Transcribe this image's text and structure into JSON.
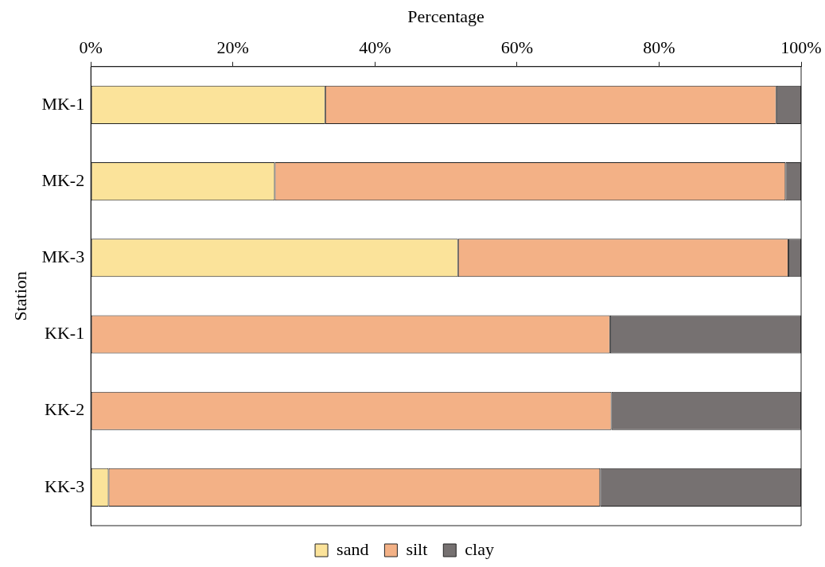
{
  "chart_data": {
    "type": "bar",
    "orientation": "horizontal",
    "stacked": true,
    "xlabel": "Percentage",
    "ylabel": "Station",
    "categories": [
      "MK-1",
      "MK-2",
      "MK-3",
      "KK-1",
      "KK-2",
      "KK-3"
    ],
    "series": [
      {
        "name": "sand",
        "color": "#fbe39a",
        "values": [
          33,
          25.9,
          51.7,
          0,
          0,
          2.5
        ]
      },
      {
        "name": "silt",
        "color": "#f3b186",
        "values": [
          63.5,
          71.9,
          46.5,
          73.1,
          73.3,
          69.2
        ]
      },
      {
        "name": "clay",
        "color": "#767171",
        "values": [
          3.5,
          2.2,
          1.8,
          26.9,
          26.7,
          28.3
        ]
      }
    ],
    "xlim": [
      0,
      100
    ],
    "xticks": [
      {
        "value": 0,
        "label": "0%"
      },
      {
        "value": 20,
        "label": "20%"
      },
      {
        "value": 40,
        "label": "40%"
      },
      {
        "value": 60,
        "label": "60%"
      },
      {
        "value": 80,
        "label": "80%"
      },
      {
        "value": 100,
        "label": "100%"
      }
    ],
    "grid": false,
    "legend": "bottom"
  }
}
